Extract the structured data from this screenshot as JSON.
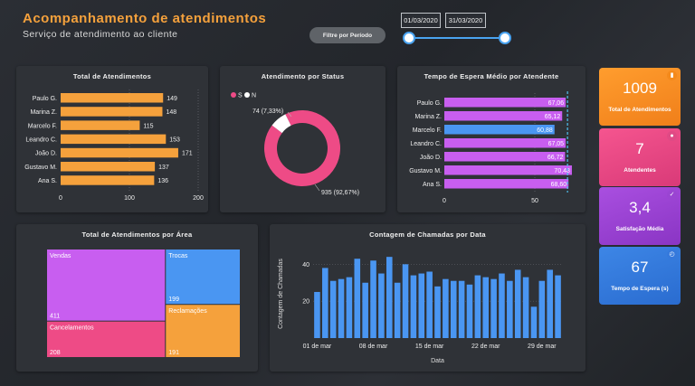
{
  "header": {
    "title": "Acompanhamento de atendimentos",
    "subtitle": "Serviço de atendimento ao cliente",
    "filter_label": "Filtre por Período",
    "date_start": "01/03/2020",
    "date_end": "31/03/2020"
  },
  "colors": {
    "orange": "#f5a13c",
    "pink": "#ee4b86",
    "purple": "#c85ef0",
    "blue": "#4a96f2",
    "white": "#ffffff"
  },
  "chart_total": {
    "title": "Total de Atendimentos",
    "chart_data": {
      "type": "bar",
      "orientation": "horizontal",
      "categories": [
        "Paulo G.",
        "Marina Z.",
        "Marcelo F.",
        "Leandro C.",
        "João D.",
        "Gustavo M.",
        "Ana S."
      ],
      "values": [
        149,
        148,
        115,
        153,
        171,
        137,
        136
      ],
      "xlim": [
        0,
        200
      ],
      "ticks": [
        "0",
        "100",
        "200"
      ]
    }
  },
  "chart_status": {
    "title": "Atendimento por Status",
    "legend": [
      "S",
      "N"
    ],
    "chart_data": {
      "type": "pie",
      "donut": true,
      "labels": [
        "S",
        "N"
      ],
      "values": [
        935,
        74
      ],
      "data_labels": [
        "935 (92,67%)",
        "74 (7,33%)"
      ]
    }
  },
  "chart_espera": {
    "title": "Tempo de Espera Médio por Atendente",
    "chart_data": {
      "type": "bar",
      "orientation": "horizontal",
      "categories": [
        "Paulo G.",
        "Marina Z.",
        "Marcelo F.",
        "Leandro C.",
        "João D.",
        "Gustavo M.",
        "Ana S."
      ],
      "values": [
        67.06,
        65.12,
        60.88,
        67.05,
        66.72,
        70.48,
        68.6
      ],
      "data_labels": [
        "67,06",
        "65,12",
        "60,88",
        "67,05",
        "66,72",
        "70,48",
        "68,60"
      ],
      "highlight": "Marcelo F.",
      "xlim": [
        0,
        75
      ],
      "ticks": [
        "0",
        "50"
      ]
    }
  },
  "chart_area": {
    "title": "Total de Atendimentos por Área",
    "chart_data": {
      "type": "treemap",
      "labels": [
        "Vendas",
        "Cancelamentos",
        "Trocas",
        "Reclamações"
      ],
      "values": [
        411,
        208,
        199,
        191
      ]
    }
  },
  "chart_calls": {
    "title": "Contagem de Chamadas por Data",
    "chart_data": {
      "type": "bar",
      "xlabel": "Data",
      "ylabel": "Contagem de Chamadas",
      "x": [
        "01/03",
        "02/03",
        "03/03",
        "04/03",
        "05/03",
        "06/03",
        "07/03",
        "08/03",
        "09/03",
        "10/03",
        "11/03",
        "12/03",
        "13/03",
        "14/03",
        "15/03",
        "16/03",
        "17/03",
        "18/03",
        "19/03",
        "20/03",
        "21/03",
        "22/03",
        "23/03",
        "24/03",
        "25/03",
        "26/03",
        "27/03",
        "28/03",
        "29/03",
        "30/03",
        "31/03"
      ],
      "values": [
        25,
        38,
        31,
        32,
        33,
        43,
        30,
        42,
        35,
        44,
        30,
        40,
        34,
        35,
        36,
        28,
        32,
        31,
        31,
        29,
        34,
        33,
        32,
        35,
        31,
        37,
        33,
        17,
        31,
        37,
        34
      ],
      "ylim": [
        0,
        48
      ],
      "ytick_labels": [
        "20",
        "40"
      ],
      "xtick_labels": [
        "01 de mar",
        "08 de mar",
        "15 de mar",
        "22 de mar",
        "29 de mar"
      ]
    }
  },
  "kpis": [
    {
      "value": "1009",
      "label": "Total de Atendimentos",
      "icon": "chat-icon"
    },
    {
      "value": "7",
      "label": "Atendentes",
      "icon": "people-icon"
    },
    {
      "value": "3,4",
      "label": "Satisfação Média",
      "icon": "check-icon"
    },
    {
      "value": "67",
      "label": "Tempo de Espera (s)",
      "icon": "clock-icon"
    }
  ]
}
